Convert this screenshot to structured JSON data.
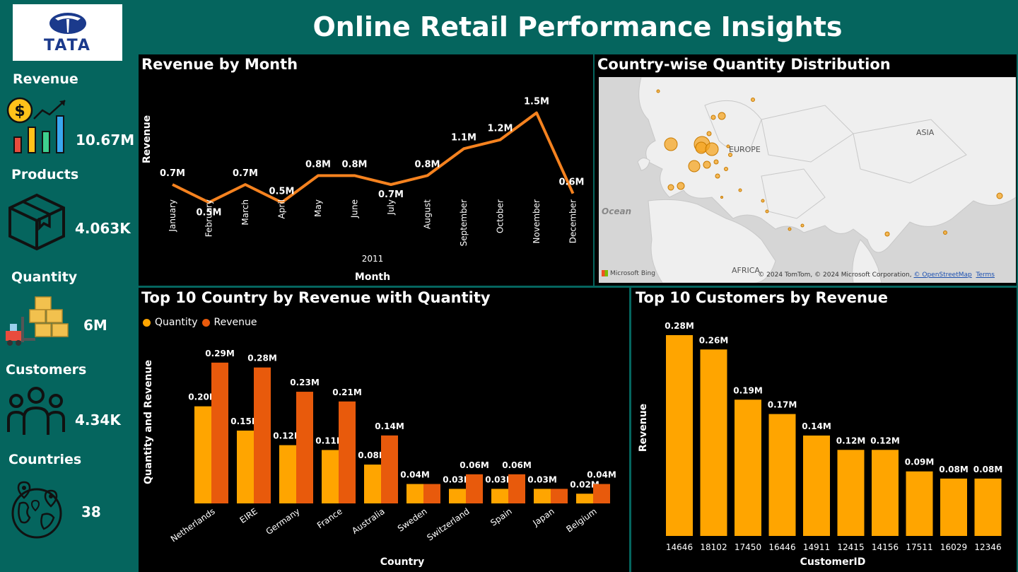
{
  "header": {
    "title": "Online Retail Performance Insights"
  },
  "logo": {
    "text": "TATA"
  },
  "kpis": [
    {
      "label": "Revenue",
      "value": "10.67M",
      "icon": "revenue-chart-icon"
    },
    {
      "label": "Products",
      "value": "4.063K",
      "icon": "box-icon"
    },
    {
      "label": "Quantity",
      "value": "6M",
      "icon": "forklift-boxes-icon"
    },
    {
      "label": "Customers",
      "value": "4.34K",
      "icon": "people-icon"
    },
    {
      "label": "Countries",
      "value": "38",
      "icon": "globe-pins-icon"
    }
  ],
  "colors": {
    "teal": "#05655e",
    "line": "#f5821f",
    "quantity": "#ffa500",
    "revenue": "#e85a0c",
    "customer_bar": "#ffa500"
  },
  "map": {
    "title": "Country-wise Quantity Distribution",
    "labels": {
      "europe": "EUROPE",
      "asia": "ASIA",
      "africa": "AFRICA",
      "ocean": "Ocean"
    },
    "bing": "Microsoft Bing",
    "attribution": "© 2024 TomTom, © 2024 Microsoft Corporation,",
    "osm": "© OpenStreetMap",
    "terms": "Terms"
  },
  "chart_data": [
    {
      "type": "line",
      "title": "Revenue by Month",
      "xlabel": "Month",
      "ylabel": "Revenue",
      "x_group_label": "2011",
      "categories": [
        "January",
        "February",
        "March",
        "April",
        "May",
        "June",
        "July",
        "August",
        "September",
        "October",
        "November",
        "December"
      ],
      "values": [
        0.7,
        0.5,
        0.7,
        0.5,
        0.8,
        0.8,
        0.7,
        0.8,
        1.1,
        1.2,
        1.5,
        0.6
      ],
      "data_labels": [
        "0.7M",
        "0.5M",
        "0.7M",
        "0.5M",
        "0.8M",
        "0.8M",
        "0.7M",
        "0.8M",
        "1.1M",
        "1.2M",
        "1.5M",
        "0.6M"
      ],
      "grid": false
    },
    {
      "type": "bar",
      "title": "Top 10 Country by Revenue with Quantity",
      "xlabel": "Country",
      "ylabel": "Quantity and Revenue",
      "legend": "top-left",
      "categories": [
        "Netherlands",
        "EIRE",
        "Germany",
        "France",
        "Australia",
        "Sweden",
        "Switzerland",
        "Spain",
        "Japan",
        "Belgium"
      ],
      "series": [
        {
          "name": "Quantity",
          "values": [
            0.2,
            0.15,
            0.12,
            0.11,
            0.08,
            0.04,
            0.03,
            0.03,
            0.03,
            0.02
          ],
          "labels": [
            "0.20M",
            "0.15M",
            "0.12M",
            "0.11M",
            "0.08M",
            "0.04M",
            "0.03M",
            "0.03M",
            "0.03M",
            "0.02M"
          ]
        },
        {
          "name": "Revenue",
          "values": [
            0.29,
            0.28,
            0.23,
            0.21,
            0.14,
            0.04,
            0.06,
            0.06,
            0.03,
            0.04
          ],
          "labels": [
            "0.29M",
            "0.28M",
            "0.23M",
            "0.21M",
            "0.14M",
            "",
            "0.06M",
            "0.06M",
            "",
            "0.04M"
          ]
        }
      ]
    },
    {
      "type": "bar",
      "title": "Top 10 Customers by Revenue",
      "xlabel": "CustomerID",
      "ylabel": "Revenue",
      "categories": [
        "14646",
        "18102",
        "17450",
        "16446",
        "14911",
        "12415",
        "14156",
        "17511",
        "16029",
        "12346"
      ],
      "values": [
        0.28,
        0.26,
        0.19,
        0.17,
        0.14,
        0.12,
        0.12,
        0.09,
        0.08,
        0.08
      ],
      "data_labels": [
        "0.28M",
        "0.26M",
        "0.19M",
        "0.17M",
        "0.14M",
        "0.12M",
        "0.12M",
        "0.09M",
        "0.08M",
        "0.08M"
      ]
    }
  ]
}
